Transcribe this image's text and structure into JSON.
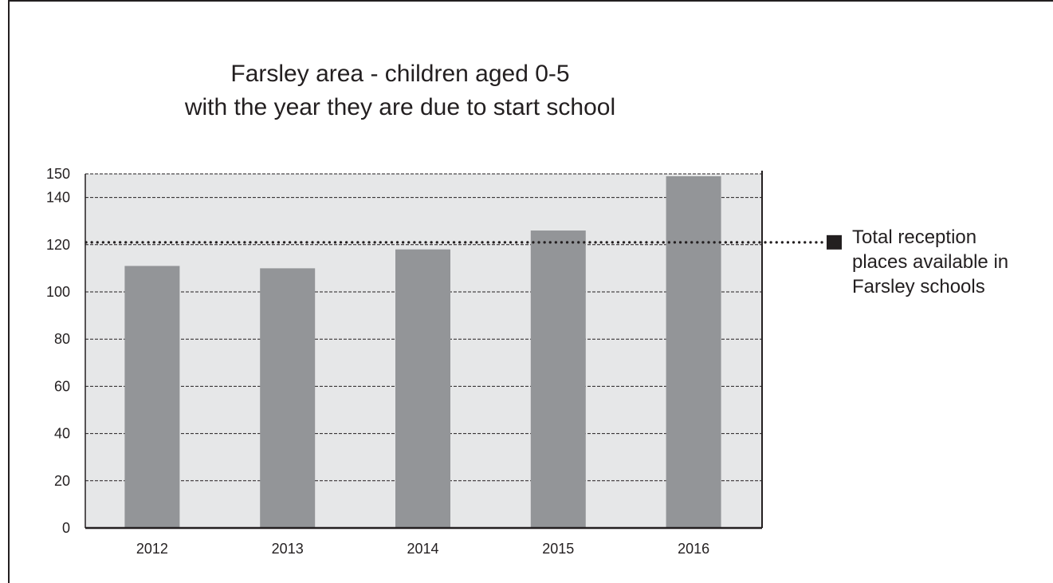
{
  "chart_data": {
    "type": "bar",
    "title_lines": [
      "Farsley area - children aged 0-5",
      "with the year they are due to start school"
    ],
    "categories": [
      "2012",
      "2013",
      "2014",
      "2015",
      "2016"
    ],
    "values": [
      111,
      110,
      118,
      126,
      149
    ],
    "xlabel": "",
    "ylabel": "",
    "ylim": [
      0,
      150
    ],
    "yticks": [
      0,
      20,
      40,
      60,
      80,
      100,
      120,
      140,
      150
    ],
    "grid": true,
    "legend": "none",
    "reference_line": {
      "value": 121,
      "style": "dotted",
      "label_lines": [
        "Total reception",
        "places available in",
        "Farsley schools"
      ]
    },
    "colors": {
      "bar": "#939598",
      "plot_background": "#e6e7e8",
      "axis": "#231f20",
      "frame": "#231f20"
    }
  }
}
